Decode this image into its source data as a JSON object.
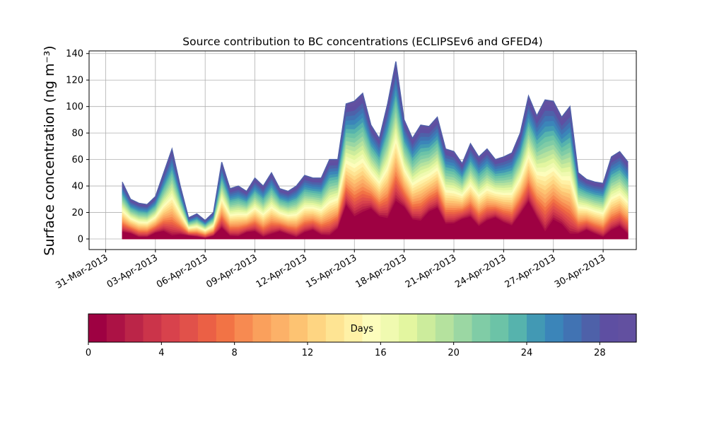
{
  "chart_data": {
    "type": "area",
    "stacked": true,
    "title": "Source contribution to BC concentrations (ECLIPSEv6 and GFED4)",
    "ylabel": "Surface concentration (ng m⁻³)",
    "xlabel": "",
    "ylim": [
      -8,
      142
    ],
    "xlim": [
      "2013-03-30",
      "2013-05-02"
    ],
    "grid": true,
    "yticks": [
      0,
      20,
      40,
      60,
      80,
      100,
      120,
      140
    ],
    "xticks": [
      "2013-03-31",
      "2013-04-03",
      "2013-04-06",
      "2013-04-09",
      "2013-04-12",
      "2013-04-15",
      "2013-04-18",
      "2013-04-21",
      "2013-04-24",
      "2013-04-27",
      "2013-04-30"
    ],
    "xtick_labels": [
      "31-Mar-2013",
      "03-Apr-2013",
      "06-Apr-2013",
      "09-Apr-2013",
      "12-Apr-2013",
      "15-Apr-2013",
      "18-Apr-2013",
      "21-Apr-2013",
      "24-Apr-2013",
      "27-Apr-2013",
      "30-Apr-2013"
    ],
    "x": [
      "2013-04-01",
      "2013-04-01 12:00",
      "2013-04-02",
      "2013-04-02 12:00",
      "2013-04-03",
      "2013-04-03 12:00",
      "2013-04-04",
      "2013-04-04 12:00",
      "2013-04-05",
      "2013-04-05 12:00",
      "2013-04-06",
      "2013-04-06 12:00",
      "2013-04-07",
      "2013-04-07 12:00",
      "2013-04-08",
      "2013-04-08 12:00",
      "2013-04-09",
      "2013-04-09 12:00",
      "2013-04-10",
      "2013-04-10 12:00",
      "2013-04-11",
      "2013-04-11 12:00",
      "2013-04-12",
      "2013-04-12 12:00",
      "2013-04-13",
      "2013-04-13 12:00",
      "2013-04-14",
      "2013-04-14 12:00",
      "2013-04-15",
      "2013-04-15 12:00",
      "2013-04-16",
      "2013-04-16 12:00",
      "2013-04-17",
      "2013-04-17 12:00",
      "2013-04-18",
      "2013-04-18 12:00",
      "2013-04-19",
      "2013-04-19 12:00",
      "2013-04-20",
      "2013-04-20 12:00",
      "2013-04-21",
      "2013-04-21 12:00",
      "2013-04-22",
      "2013-04-22 12:00",
      "2013-04-23",
      "2013-04-23 12:00",
      "2013-04-24",
      "2013-04-24 12:00",
      "2013-04-25",
      "2013-04-25 12:00",
      "2013-04-26",
      "2013-04-26 12:00",
      "2013-04-27",
      "2013-04-27 12:00",
      "2013-04-28",
      "2013-04-28 12:00",
      "2013-04-29",
      "2013-04-29 12:00",
      "2013-04-30",
      "2013-04-30 12:00",
      "2013-05-01",
      "2013-05-01 12:00"
    ],
    "total": [
      43,
      30,
      27,
      26,
      32,
      50,
      68,
      40,
      16,
      19,
      14,
      20,
      58,
      38,
      40,
      36,
      46,
      40,
      50,
      38,
      36,
      40,
      48,
      46,
      46,
      60,
      60,
      102,
      104,
      110,
      86,
      76,
      102,
      134,
      90,
      76,
      86,
      85,
      92,
      68,
      66,
      57,
      72,
      62,
      68,
      60,
      62,
      65,
      80,
      108,
      93,
      105,
      104,
      92,
      100,
      50,
      45,
      43,
      42,
      62,
      66,
      58
    ],
    "age_band_width_days": 1,
    "age_bands": 30,
    "legend": {
      "colorbar": true,
      "orientation": "horizontal",
      "placement": "bottom",
      "label": "Days",
      "range": [
        0,
        30
      ],
      "ticks": [
        0,
        4,
        8,
        12,
        16,
        20,
        24,
        28
      ],
      "cmap": "Spectral"
    },
    "colors": [
      "#9e0142",
      "#ac1245",
      "#bb2548",
      "#cb344a",
      "#d8424c",
      "#e1514a",
      "#eb6045",
      "#f27345",
      "#f78a51",
      "#faa05c",
      "#fcb168",
      "#fdc372",
      "#fed582",
      "#fee493",
      "#fff1a6",
      "#fdfdbc",
      "#f0fab0",
      "#e3f6a0",
      "#ccec9c",
      "#b5e29e",
      "#9bd7a3",
      "#80cca6",
      "#6cc3a7",
      "#56b3ad",
      "#4299b4",
      "#3b85b9",
      "#4173b3",
      "#4e61a9",
      "#5e4fa2",
      "#6250a0"
    ]
  }
}
